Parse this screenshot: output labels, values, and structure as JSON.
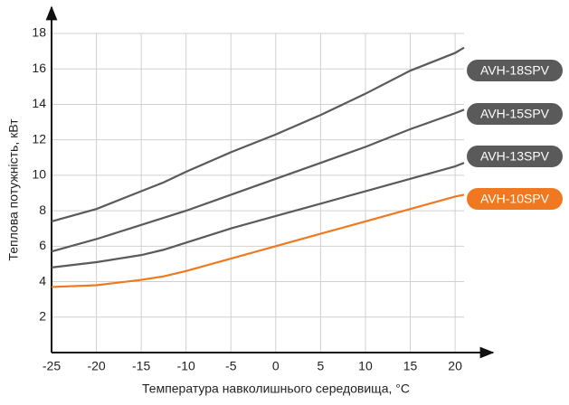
{
  "chart_data": {
    "type": "line",
    "xlabel": "Температура навколишнього середовища, °C",
    "ylabel": "Теплова потужність, кВт",
    "x": [
      -25,
      -20,
      -15,
      -12.5,
      -10,
      -5,
      0,
      5,
      10,
      15,
      20,
      21
    ],
    "series": [
      {
        "name": "AVH-18SPV",
        "color": "#5a5a5a",
        "values": [
          7.4,
          8.1,
          9.1,
          9.6,
          10.2,
          11.3,
          12.3,
          13.4,
          14.6,
          15.9,
          16.9,
          17.2
        ]
      },
      {
        "name": "AVH-15SPV",
        "color": "#5a5a5a",
        "values": [
          5.7,
          6.4,
          7.2,
          7.6,
          8.0,
          8.9,
          9.8,
          10.7,
          11.6,
          12.6,
          13.5,
          13.7
        ]
      },
      {
        "name": "AVH-13SPV",
        "color": "#5a5a5a",
        "values": [
          4.8,
          5.1,
          5.5,
          5.8,
          6.2,
          7.0,
          7.7,
          8.4,
          9.1,
          9.8,
          10.5,
          10.7
        ]
      },
      {
        "name": "AVH-10SPV",
        "color": "#f07820",
        "values": [
          3.7,
          3.8,
          4.1,
          4.3,
          4.6,
          5.3,
          6.0,
          6.7,
          7.4,
          8.1,
          8.8,
          8.9
        ]
      }
    ],
    "xlim": [
      -25,
      21
    ],
    "ylim": [
      0,
      18
    ],
    "xticks": [
      -25,
      -20,
      -15,
      -10,
      -5,
      0,
      5,
      10,
      15,
      20
    ],
    "yticks": [
      2,
      4,
      6,
      8,
      10,
      12,
      14,
      16,
      18
    ],
    "grid": true
  }
}
